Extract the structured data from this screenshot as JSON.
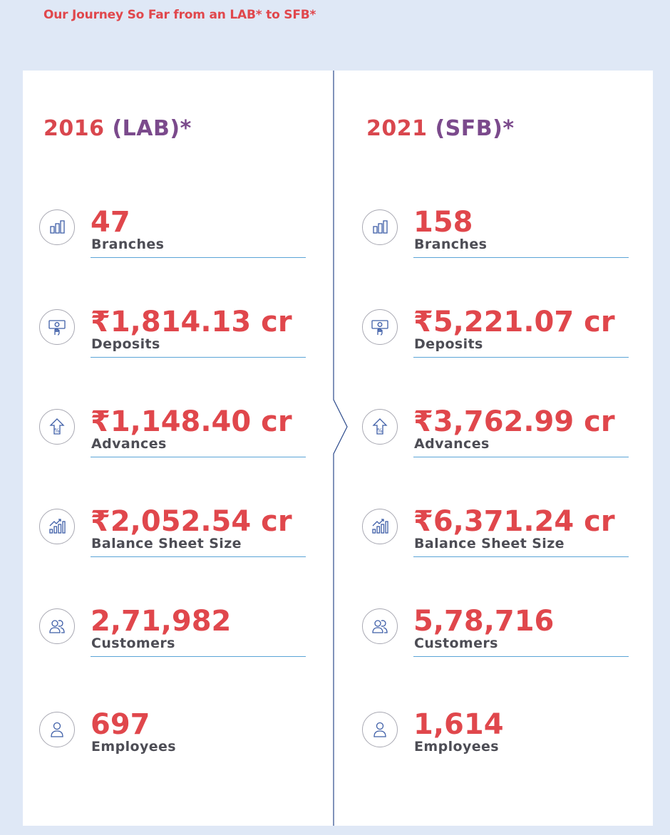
{
  "heading": "Our Journey So Far from an LAB* to SFB*",
  "columns": [
    {
      "year": "2016",
      "tag": "(LAB)*",
      "stats": [
        {
          "icon": "bar-chart-icon",
          "value": "47",
          "label": "Branches"
        },
        {
          "icon": "cash-hand-icon",
          "value": "₹1,814.13 cr",
          "label": "Deposits"
        },
        {
          "icon": "percent-up-icon",
          "value": "₹1,148.40 cr",
          "label": "Advances"
        },
        {
          "icon": "growth-chart-icon",
          "value": "₹2,052.54 cr",
          "label": "Balance Sheet Size"
        },
        {
          "icon": "customers-icon",
          "value": "2,71,982",
          "label": "Customers"
        },
        {
          "icon": "employee-icon",
          "value": "697",
          "label": "Employees"
        }
      ]
    },
    {
      "year": "2021",
      "tag": "(SFB)*",
      "stats": [
        {
          "icon": "bar-chart-icon",
          "value": "158",
          "label": "Branches"
        },
        {
          "icon": "cash-hand-icon",
          "value": "₹5,221.07 cr",
          "label": "Deposits"
        },
        {
          "icon": "percent-up-icon",
          "value": "₹3,762.99 cr",
          "label": "Advances"
        },
        {
          "icon": "growth-chart-icon",
          "value": "₹6,371.24 cr",
          "label": "Balance Sheet Size"
        },
        {
          "icon": "customers-icon",
          "value": "5,78,716",
          "label": "Customers"
        },
        {
          "icon": "employee-icon",
          "value": "1,614",
          "label": "Employees"
        }
      ]
    }
  ],
  "colors": {
    "accent": "#e0474c",
    "tag": "#7b4a8c",
    "rule": "#5aa4d6",
    "background": "#dfe8f6",
    "divider": "#2c4a8c"
  }
}
